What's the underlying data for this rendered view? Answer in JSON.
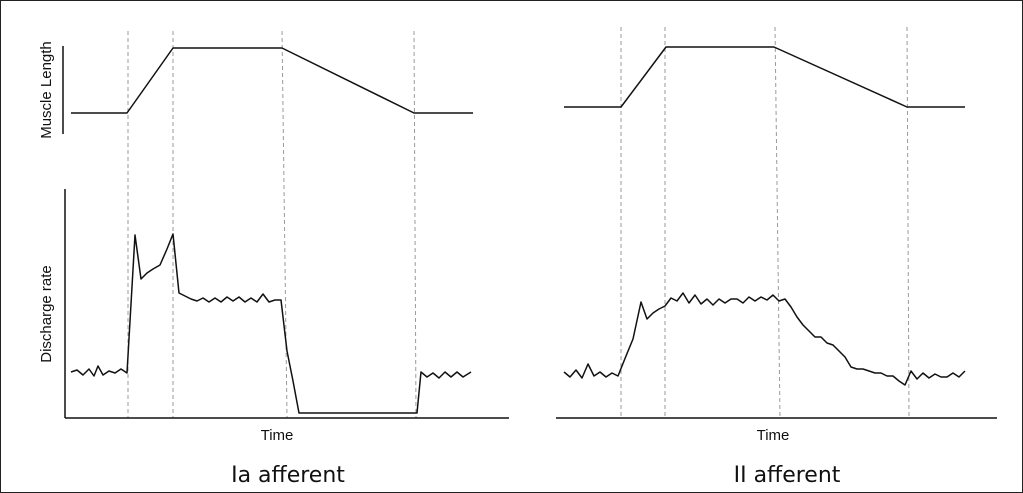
{
  "figure": {
    "ylabel_top": "Muscle Length",
    "ylabel_bottom": "Discharge rate",
    "panels": [
      {
        "xlabel": "Time",
        "title": "Ia afferent"
      },
      {
        "xlabel": "Time",
        "title": "II afferent"
      }
    ]
  },
  "colors": {
    "trace": "#111111",
    "event_line": "#9a9a9a",
    "border": "#222222"
  }
}
